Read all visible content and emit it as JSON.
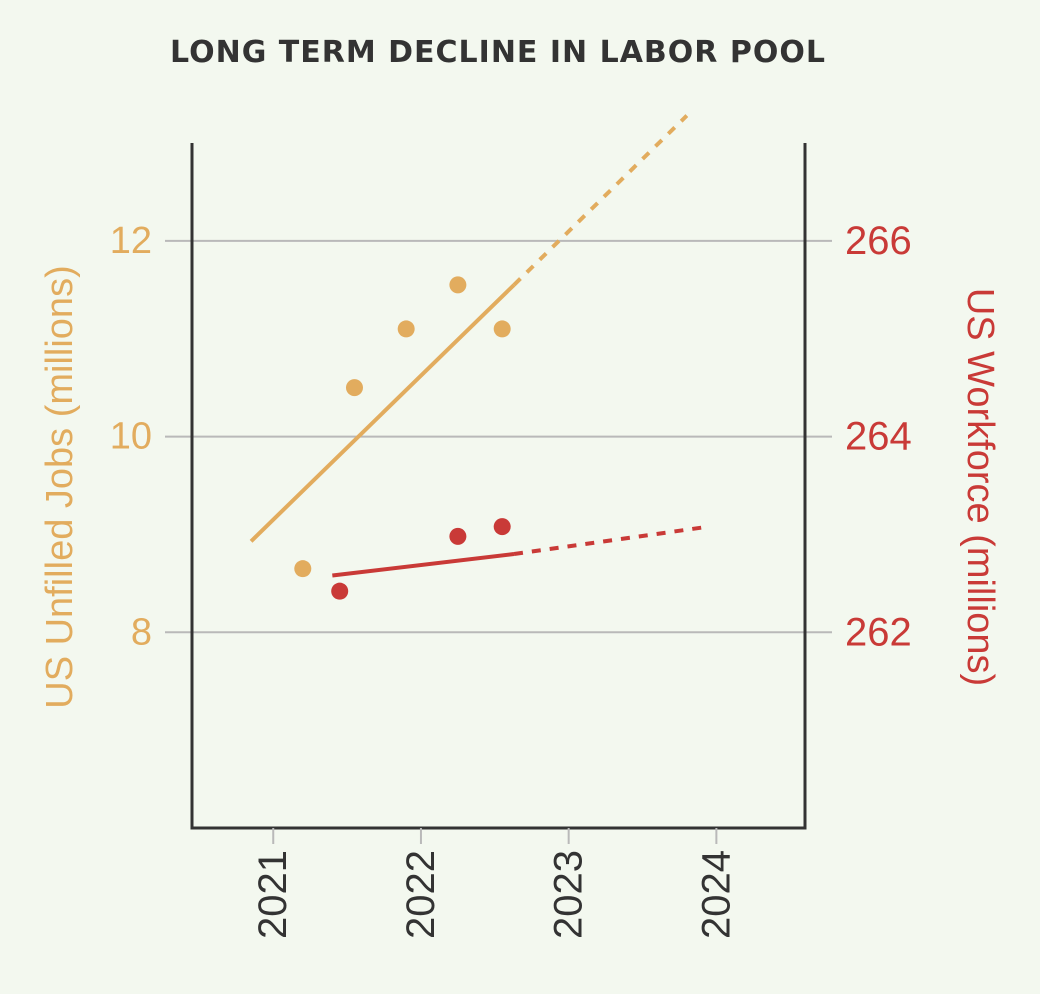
{
  "colors": {
    "background": "#f3f8ef",
    "jobs": "#e2ac5e",
    "workforce": "#c93a37",
    "axis": "#333333",
    "grid": "#b9b9b9"
  },
  "chart_data": {
    "type": "scatter",
    "title": "LONG TERM DECLINE IN LABOR POOL",
    "grid": true,
    "x_axis": {
      "label": "",
      "ticks": [
        2021,
        2022,
        2023,
        2024
      ],
      "tick_labels": [
        "2021",
        "2022",
        "2023",
        "2024"
      ],
      "range": [
        2020.45,
        2024.6
      ]
    },
    "y_axis_left": {
      "label": "US Unfilled Jobs (millions)",
      "ticks": [
        8,
        10,
        12
      ],
      "tick_labels": [
        "8",
        "10",
        "12"
      ],
      "range": [
        6.0,
        13.0
      ]
    },
    "y_axis_right": {
      "label": "US Workforce (millions)",
      "ticks": [
        262,
        264,
        266
      ],
      "tick_labels": [
        "262",
        "264",
        "266"
      ],
      "range": [
        260.0,
        267.0
      ]
    },
    "series": [
      {
        "name": "US Unfilled Jobs (millions)",
        "axis": "left",
        "color": "#e2ac5e",
        "points": [
          {
            "x": 2021.2,
            "y": 8.65
          },
          {
            "x": 2021.55,
            "y": 10.5
          },
          {
            "x": 2021.9,
            "y": 11.1
          },
          {
            "x": 2022.25,
            "y": 11.55
          },
          {
            "x": 2022.55,
            "y": 11.1
          }
        ],
        "trend_solid": [
          {
            "x": 2020.85,
            "y": 8.93
          },
          {
            "x": 2022.63,
            "y": 11.55
          }
        ],
        "trend_dashed": [
          {
            "x": 2022.63,
            "y": 11.55
          },
          {
            "x": 2023.8,
            "y": 13.28
          }
        ]
      },
      {
        "name": "US Workforce (millions)",
        "axis": "right",
        "color": "#c93a37",
        "points": [
          {
            "x": 2021.45,
            "y": 262.42
          },
          {
            "x": 2022.25,
            "y": 262.98
          },
          {
            "x": 2022.55,
            "y": 263.08
          }
        ],
        "trend_solid": [
          {
            "x": 2021.4,
            "y": 262.58
          },
          {
            "x": 2022.63,
            "y": 262.8
          }
        ],
        "trend_dashed": [
          {
            "x": 2022.63,
            "y": 262.8
          },
          {
            "x": 2023.95,
            "y": 263.08
          }
        ]
      }
    ]
  }
}
